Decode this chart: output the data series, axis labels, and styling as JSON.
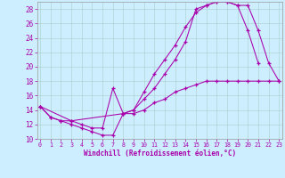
{
  "background_color": "#cceeff",
  "grid_color": "#aacccc",
  "line_color": "#aa00aa",
  "xlabel": "Windchill (Refroidissement éolien,°C)",
  "xlim_min": 0,
  "xlim_max": 23,
  "ylim_min": 10,
  "ylim_max": 29,
  "xticks": [
    0,
    1,
    2,
    3,
    4,
    5,
    6,
    7,
    8,
    9,
    10,
    11,
    12,
    13,
    14,
    15,
    16,
    17,
    18,
    19,
    20,
    21,
    22,
    23
  ],
  "yticks": [
    10,
    12,
    14,
    16,
    18,
    20,
    22,
    24,
    26,
    28
  ],
  "curve1_x": [
    0,
    1,
    2,
    3,
    4,
    5,
    6,
    7,
    8,
    9,
    10,
    11,
    12,
    13,
    14,
    15,
    16,
    17,
    18,
    19,
    20,
    21
  ],
  "curve1_y": [
    14.5,
    13.0,
    12.5,
    12.0,
    11.5,
    11.0,
    10.5,
    10.5,
    13.5,
    14.0,
    16.5,
    19.0,
    21.0,
    23.0,
    25.5,
    27.5,
    28.5,
    29.0,
    29.0,
    28.5,
    25.0,
    20.5
  ],
  "curve2_x": [
    0,
    3,
    4,
    5,
    6,
    7,
    8,
    9,
    10,
    11,
    12,
    13,
    14,
    15,
    16,
    17,
    18,
    19,
    20,
    21,
    22,
    23
  ],
  "curve2_y": [
    14.5,
    12.5,
    12.0,
    11.5,
    11.5,
    17.0,
    13.5,
    14.0,
    15.5,
    17.0,
    19.0,
    21.0,
    23.5,
    28.0,
    28.5,
    29.0,
    29.0,
    28.5,
    28.5,
    25.0,
    20.5,
    18.0
  ],
  "curve3_x": [
    0,
    1,
    2,
    3,
    8,
    9,
    10,
    11,
    12,
    13,
    14,
    15,
    16,
    17,
    18,
    19,
    20,
    21,
    22,
    23
  ],
  "curve3_y": [
    14.5,
    13.0,
    12.5,
    12.5,
    13.5,
    13.5,
    14.0,
    15.0,
    15.5,
    16.5,
    17.0,
    17.5,
    18.0,
    18.0,
    18.0,
    18.0,
    18.0,
    18.0,
    18.0,
    18.0
  ]
}
